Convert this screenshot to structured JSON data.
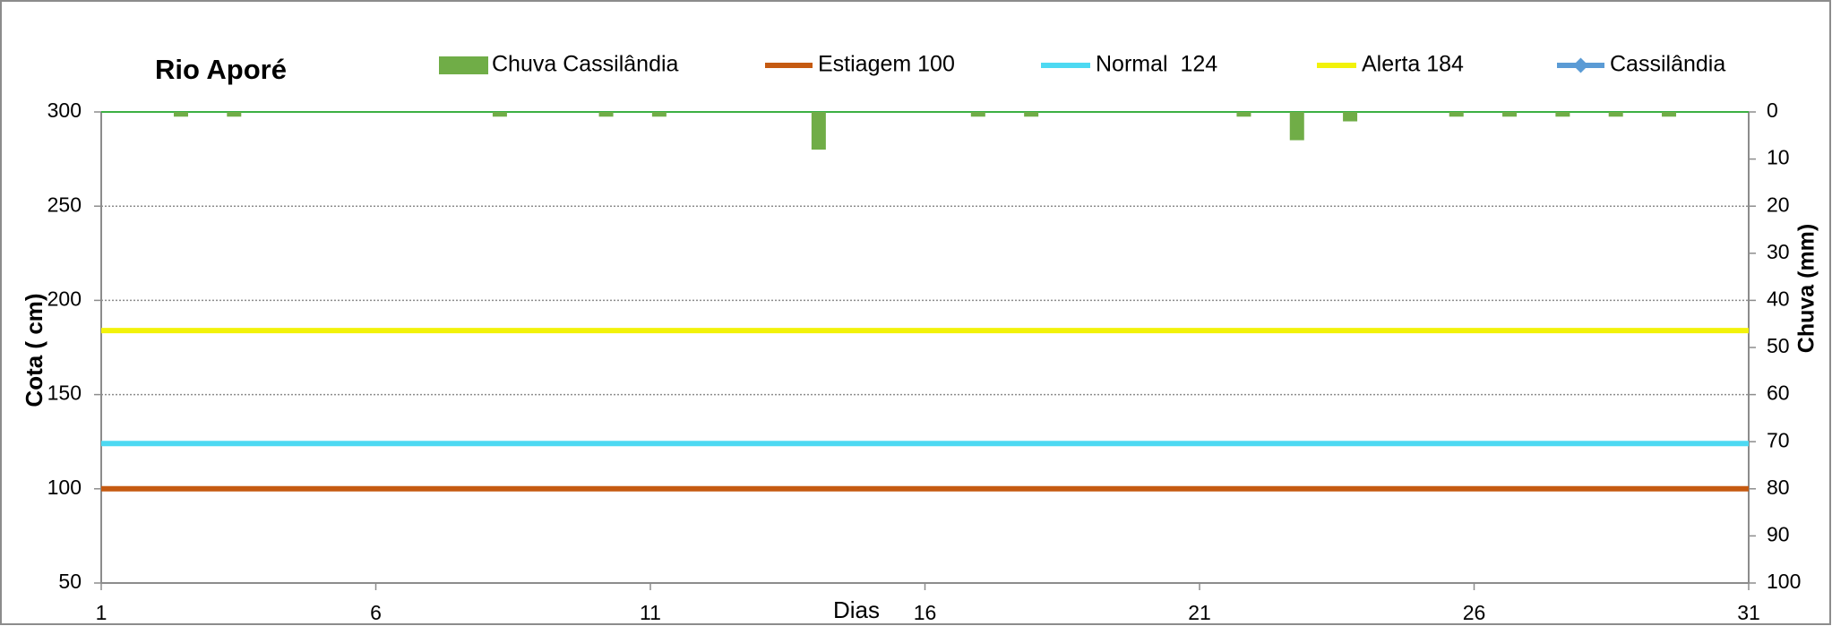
{
  "chart_data": {
    "type": "combo",
    "title": "Rio Aporé",
    "xlabel": "Dias",
    "ylabel": "Cota   ( cm)",
    "y2label": "Chuva (mm)",
    "x": [
      1,
      2,
      3,
      4,
      5,
      6,
      7,
      8,
      9,
      10,
      11,
      12,
      13,
      14,
      15,
      16,
      17,
      18,
      19,
      20,
      21,
      22,
      23,
      24,
      25,
      26,
      27,
      28,
      29,
      30,
      31
    ],
    "xlim": [
      1,
      31
    ],
    "xticks": [
      1,
      6,
      11,
      16,
      21,
      26,
      31
    ],
    "ylim": [
      50,
      300
    ],
    "yticks": [
      50,
      100,
      150,
      200,
      250,
      300
    ],
    "y2lim": [
      0,
      100
    ],
    "y2_reversed": true,
    "y2ticks": [
      0,
      10,
      20,
      30,
      40,
      50,
      60,
      70,
      80,
      90,
      100
    ],
    "grid": true,
    "legend": "top",
    "series": [
      {
        "name": "Chuva Cassilândia",
        "kind": "bar",
        "axis": "y2",
        "color": "#70ad47",
        "values": [
          0,
          1,
          1,
          0,
          0,
          0,
          0,
          1,
          0,
          1,
          1,
          0,
          0,
          8,
          0,
          0,
          1,
          1,
          0,
          0,
          0,
          1,
          6,
          2,
          0,
          1,
          1,
          1,
          1,
          1,
          0
        ]
      },
      {
        "name": "Estiagem 100",
        "kind": "line",
        "color": "#c55a11",
        "values": [
          100,
          100,
          100,
          100,
          100,
          100,
          100,
          100,
          100,
          100,
          100,
          100,
          100,
          100,
          100,
          100,
          100,
          100,
          100,
          100,
          100,
          100,
          100,
          100,
          100,
          100,
          100,
          100,
          100,
          100,
          100
        ]
      },
      {
        "name": "Normal  124",
        "kind": "line",
        "color": "#4dd9f2",
        "values": [
          124,
          124,
          124,
          124,
          124,
          124,
          124,
          124,
          124,
          124,
          124,
          124,
          124,
          124,
          124,
          124,
          124,
          124,
          124,
          124,
          124,
          124,
          124,
          124,
          124,
          124,
          124,
          124,
          124,
          124,
          124
        ]
      },
      {
        "name": "Alerta 184",
        "kind": "line",
        "color": "#f2f20a",
        "values": [
          184,
          184,
          184,
          184,
          184,
          184,
          184,
          184,
          184,
          184,
          184,
          184,
          184,
          184,
          184,
          184,
          184,
          184,
          184,
          184,
          184,
          184,
          184,
          184,
          184,
          184,
          184,
          184,
          184,
          184,
          184
        ]
      },
      {
        "name": "Cassilândia",
        "kind": "line",
        "color": "#5b9bd5",
        "values": [
          null,
          null,
          null,
          null,
          null,
          null,
          null,
          null,
          null,
          null,
          null,
          null,
          null,
          null,
          null,
          null,
          null,
          null,
          null,
          null,
          null,
          null,
          null,
          null,
          null,
          null,
          null,
          null,
          null,
          null,
          null
        ]
      }
    ]
  }
}
